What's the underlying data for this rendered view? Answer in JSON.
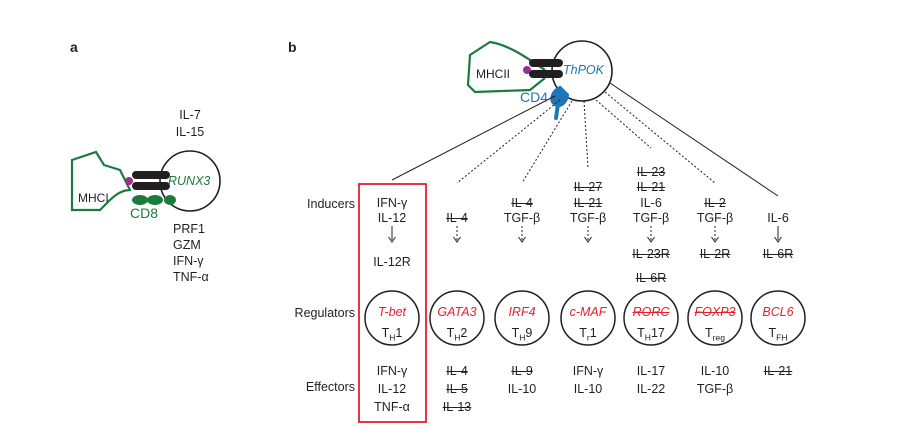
{
  "panels": {
    "a": "a",
    "b": "b"
  },
  "panel_a": {
    "inducers": [
      "IL-7",
      "IL-15"
    ],
    "receptor_label": "MHCI",
    "coreceptor": "CD8",
    "tf": "RUNX3",
    "effectors": [
      "PRF1",
      "GZM",
      "IFN-γ",
      "TNF-α"
    ]
  },
  "panel_b": {
    "receptor_label": "MHCII",
    "coreceptor": "CD4",
    "tf": "ThPOK",
    "row_labels": {
      "inducers": "Inducers",
      "regulators": "Regulators",
      "effectors": "Effectors"
    },
    "lineages": [
      {
        "tf": "T-bet",
        "tf_struck": false,
        "cell": "T",
        "sub": "H",
        "suffix": "1",
        "inducers": [
          {
            "t": "IFN-γ",
            "s": false
          },
          {
            "t": "IL-12",
            "s": false
          }
        ],
        "receptors": [
          {
            "t": "IL-12R",
            "s": false
          }
        ],
        "effectors": [
          {
            "t": "IFN-γ",
            "s": false
          },
          {
            "t": "IL-12",
            "s": false
          },
          {
            "t": "TNF-α",
            "s": false
          }
        ],
        "highlighted": true
      },
      {
        "tf": "GATA3",
        "tf_struck": false,
        "cell": "T",
        "sub": "H",
        "suffix": "2",
        "inducers": [
          {
            "t": "IL-4",
            "s": true
          }
        ],
        "receptors": [],
        "effectors": [
          {
            "t": "IL-4",
            "s": true
          },
          {
            "t": "IL-5",
            "s": true
          },
          {
            "t": "IL-13",
            "s": true
          }
        ]
      },
      {
        "tf": "IRF4",
        "tf_struck": false,
        "cell": "T",
        "sub": "H",
        "suffix": "9",
        "inducers": [
          {
            "t": "IL-4",
            "s": true
          },
          {
            "t": "TGF-β",
            "s": false
          }
        ],
        "receptors": [],
        "effectors": [
          {
            "t": "IL-9",
            "s": true
          },
          {
            "t": "IL-10",
            "s": false
          }
        ]
      },
      {
        "tf": "c-MAF",
        "tf_struck": false,
        "cell": "T",
        "sub": "r",
        "suffix": "1",
        "inducers": [
          {
            "t": "IL-27",
            "s": true
          },
          {
            "t": "IL-21",
            "s": true
          },
          {
            "t": "TGF-β",
            "s": false
          }
        ],
        "receptors": [],
        "effectors": [
          {
            "t": "IFN-γ",
            "s": false
          },
          {
            "t": "IL-10",
            "s": false
          }
        ]
      },
      {
        "tf": "RORC",
        "tf_struck": true,
        "cell": "T",
        "sub": "H",
        "suffix": "17",
        "inducers": [
          {
            "t": "IL-23",
            "s": true
          },
          {
            "t": "IL-21",
            "s": true
          },
          {
            "t": "IL-6",
            "s": false
          },
          {
            "t": "TGF-β",
            "s": false
          }
        ],
        "receptors": [
          {
            "t": "IL-23R",
            "s": true
          },
          {
            "t": "IL-6R",
            "s": true
          }
        ],
        "effectors": [
          {
            "t": "IL-17",
            "s": false
          },
          {
            "t": "IL-22",
            "s": false
          }
        ]
      },
      {
        "tf": "FOXP3",
        "tf_struck": true,
        "cell": "T",
        "sub": "reg",
        "suffix": "",
        "inducers": [
          {
            "t": "IL-2",
            "s": true
          },
          {
            "t": "TGF-β",
            "s": false
          }
        ],
        "receptors": [
          {
            "t": "IL-2R",
            "s": true
          }
        ],
        "effectors": [
          {
            "t": "IL-10",
            "s": false
          },
          {
            "t": "TGF-β",
            "s": false
          }
        ]
      },
      {
        "tf": "BCL6",
        "tf_struck": false,
        "cell": "T",
        "sub": "FH",
        "suffix": "",
        "inducers": [
          {
            "t": "IL-6",
            "s": false
          }
        ],
        "receptors": [
          {
            "t": "IL-6R",
            "s": true
          }
        ],
        "effectors": [
          {
            "t": "IL-21",
            "s": true
          }
        ]
      }
    ]
  },
  "colors": {
    "red": "#e3202b",
    "green": "#1c7a3e",
    "blue": "#1e76b8",
    "black": "#231f20"
  }
}
